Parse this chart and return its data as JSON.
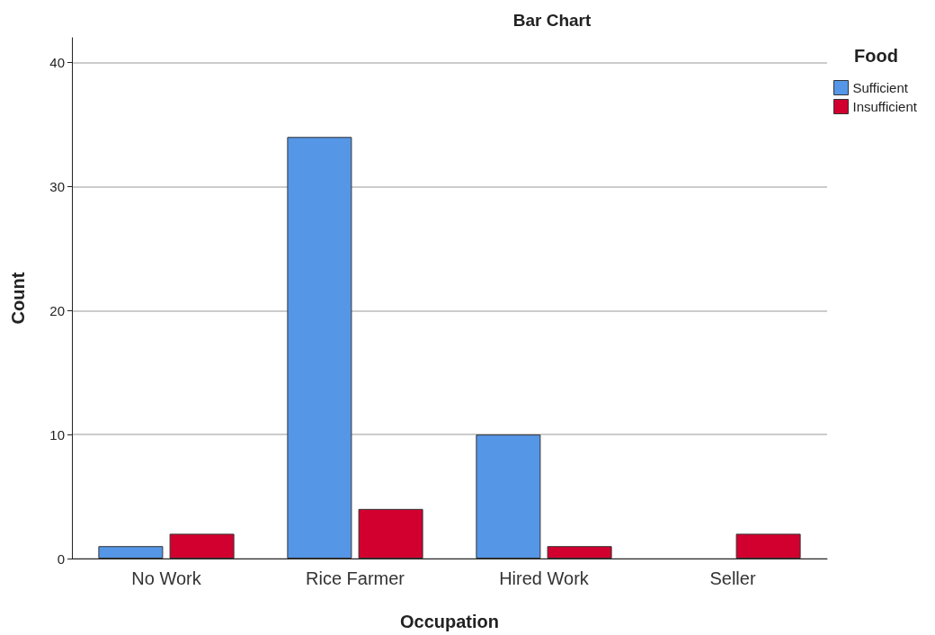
{
  "chart_data": {
    "type": "bar",
    "title": "Bar Chart",
    "xlabel": "Occupation",
    "ylabel": "Count",
    "legend_title": "Food",
    "categories": [
      "No Work",
      "Rice Farmer",
      "Hired Work",
      "Seller"
    ],
    "series": [
      {
        "name": "Sufficient",
        "color": "#5596e6",
        "values": [
          1,
          34,
          10,
          null
        ]
      },
      {
        "name": "Insufficient",
        "color": "#d2002f",
        "values": [
          2,
          4,
          1,
          2
        ]
      }
    ],
    "ylim": [
      0,
      42
    ],
    "yticks": [
      0,
      10,
      20,
      30,
      40
    ],
    "grid": "y",
    "legend": "top right"
  }
}
